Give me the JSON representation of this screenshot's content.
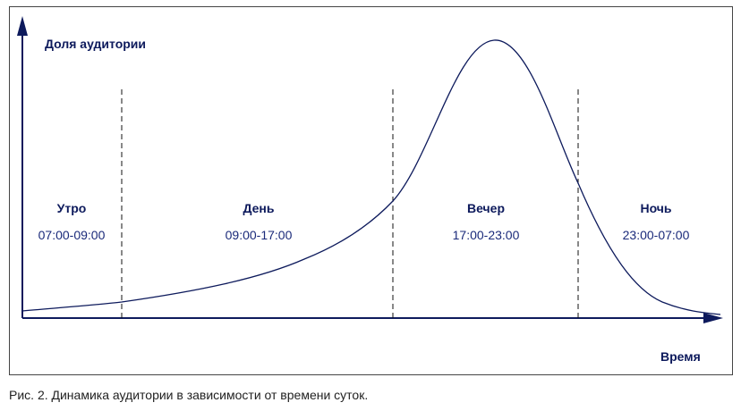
{
  "axes": {
    "y_label": "Доля аудитории",
    "x_label": "Время"
  },
  "segments": [
    {
      "name": "Утро",
      "time": "07:00-09:00"
    },
    {
      "name": "День",
      "time": "09:00-17:00"
    },
    {
      "name": "Вечер",
      "time": "17:00-23:00"
    },
    {
      "name": "Ночь",
      "time": "23:00-07:00"
    }
  ],
  "caption": "Рис. 2. Динамика аудитории в зависимости от времени суток."
}
